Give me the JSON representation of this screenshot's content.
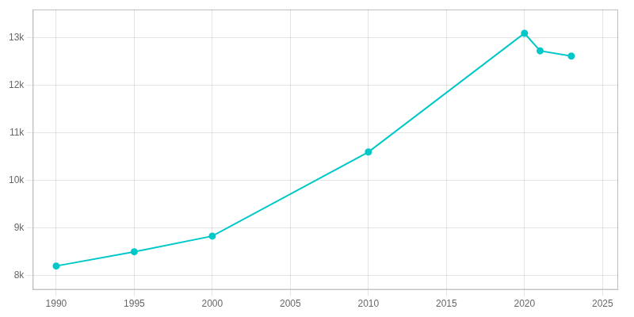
{
  "chart_data": {
    "type": "line",
    "x": [
      1990,
      1995,
      2000,
      2010,
      2020,
      2021,
      2023
    ],
    "values": [
      8200,
      8500,
      8830,
      10600,
      13100,
      12730,
      12620
    ],
    "color": "#00c8c8",
    "marker": "circle",
    "xlim": [
      1988.5,
      2026
    ],
    "xticks": [
      1990,
      1995,
      2000,
      2005,
      2010,
      2015,
      2020,
      2025
    ],
    "ylim": [
      7700,
      13600
    ],
    "yticks": [
      {
        "value": 8000,
        "label": "8k"
      },
      {
        "value": 9000,
        "label": "9k"
      },
      {
        "value": 10000,
        "label": "10k"
      },
      {
        "value": 11000,
        "label": "11k"
      },
      {
        "value": 12000,
        "label": "12k"
      },
      {
        "value": 13000,
        "label": "13k"
      }
    ],
    "grid": true
  }
}
